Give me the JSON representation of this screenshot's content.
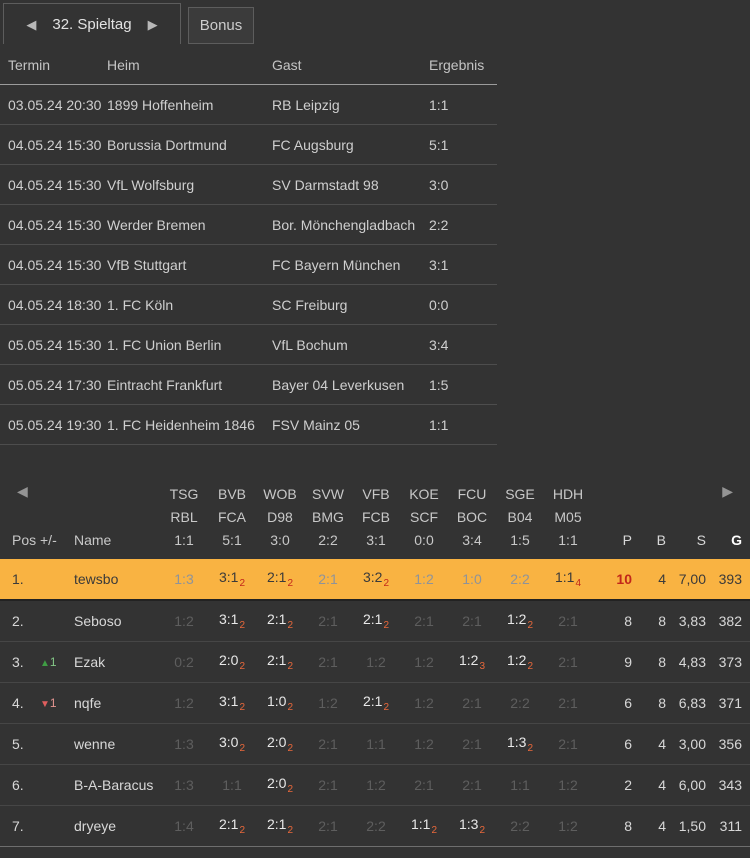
{
  "colors": {
    "background": "#333333",
    "highlight_row": "#f9b342",
    "hit_subscript": "#e8683b",
    "highlight_subscript": "#c2271a",
    "trend_up": "#3f9d44",
    "trend_down": "#e05e5e"
  },
  "tabs": {
    "matchday": {
      "label": "32. Spieltag",
      "prev_icon": "◀",
      "next_icon": "▶"
    },
    "bonus": {
      "label": "Bonus"
    }
  },
  "matches": {
    "columns": [
      "Termin",
      "Heim",
      "Gast",
      "Ergebnis"
    ],
    "rows": [
      {
        "termin": "03.05.24 20:30",
        "heim": "1899 Hoffenheim",
        "gast": "RB Leipzig",
        "ergebnis": "1:1"
      },
      {
        "termin": "04.05.24 15:30",
        "heim": "Borussia Dortmund",
        "gast": "FC Augsburg",
        "ergebnis": "5:1"
      },
      {
        "termin": "04.05.24 15:30",
        "heim": "VfL Wolfsburg",
        "gast": "SV Darmstadt 98",
        "ergebnis": "3:0"
      },
      {
        "termin": "04.05.24 15:30",
        "heim": "Werder Bremen",
        "gast": "Bor. Mönchengladbach",
        "ergebnis": "2:2"
      },
      {
        "termin": "04.05.24 15:30",
        "heim": "VfB Stuttgart",
        "gast": "FC Bayern München",
        "ergebnis": "3:1"
      },
      {
        "termin": "04.05.24 18:30",
        "heim": "1. FC Köln",
        "gast": "SC Freiburg",
        "ergebnis": "0:0"
      },
      {
        "termin": "05.05.24 15:30",
        "heim": "1. FC Union Berlin",
        "gast": "VfL Bochum",
        "ergebnis": "3:4"
      },
      {
        "termin": "05.05.24 17:30",
        "heim": "Eintracht Frankfurt",
        "gast": "Bayer 04 Leverkusen",
        "ergebnis": "1:5"
      },
      {
        "termin": "05.05.24 19:30",
        "heim": "1. FC Heidenheim 1846",
        "gast": "FSV Mainz 05",
        "ergebnis": "1:1"
      }
    ]
  },
  "leaderboard": {
    "icons": {
      "prev": "◀",
      "next": "▶",
      "up": "▲",
      "down": "▼"
    },
    "pos_label": "Pos",
    "trend_label": "+/-",
    "name_label": "Name",
    "stat_labels": {
      "p": "P",
      "b": "B",
      "s": "S",
      "g": "G"
    },
    "match_columns": [
      {
        "home": "TSG",
        "away": "RBL",
        "result": "1:1"
      },
      {
        "home": "BVB",
        "away": "FCA",
        "result": "5:1"
      },
      {
        "home": "WOB",
        "away": "D98",
        "result": "3:0"
      },
      {
        "home": "SVW",
        "away": "BMG",
        "result": "2:2"
      },
      {
        "home": "VFB",
        "away": "FCB",
        "result": "3:1"
      },
      {
        "home": "KOE",
        "away": "SCF",
        "result": "0:0"
      },
      {
        "home": "FCU",
        "away": "BOC",
        "result": "3:4"
      },
      {
        "home": "SGE",
        "away": "B04",
        "result": "1:5"
      },
      {
        "home": "HDH",
        "away": "M05",
        "result": "1:1"
      }
    ],
    "rows": [
      {
        "pos": "1.",
        "trend": null,
        "name": "tewsbo",
        "highlighted": true,
        "p_highlight": true,
        "predictions": [
          {
            "score": "1:3",
            "points": null
          },
          {
            "score": "3:1",
            "points": "2"
          },
          {
            "score": "2:1",
            "points": "2"
          },
          {
            "score": "2:1",
            "points": null
          },
          {
            "score": "3:2",
            "points": "2"
          },
          {
            "score": "1:2",
            "points": null
          },
          {
            "score": "1:0",
            "points": null
          },
          {
            "score": "2:2",
            "points": null
          },
          {
            "score": "1:1",
            "points": "4"
          }
        ],
        "p": "10",
        "b": "4",
        "s": "7,00",
        "g": "393"
      },
      {
        "pos": "2.",
        "trend": null,
        "name": "Seboso",
        "highlighted": false,
        "p_highlight": false,
        "predictions": [
          {
            "score": "1:2",
            "points": null
          },
          {
            "score": "3:1",
            "points": "2"
          },
          {
            "score": "2:1",
            "points": "2"
          },
          {
            "score": "2:1",
            "points": null
          },
          {
            "score": "2:1",
            "points": "2"
          },
          {
            "score": "2:1",
            "points": null
          },
          {
            "score": "2:1",
            "points": null
          },
          {
            "score": "1:2",
            "points": "2"
          },
          {
            "score": "2:1",
            "points": null
          }
        ],
        "p": "8",
        "b": "8",
        "s": "3,83",
        "g": "382"
      },
      {
        "pos": "3.",
        "trend": {
          "dir": "up",
          "value": "1"
        },
        "name": "Ezak",
        "highlighted": false,
        "p_highlight": false,
        "predictions": [
          {
            "score": "0:2",
            "points": null
          },
          {
            "score": "2:0",
            "points": "2"
          },
          {
            "score": "2:1",
            "points": "2"
          },
          {
            "score": "2:1",
            "points": null
          },
          {
            "score": "1:2",
            "points": null
          },
          {
            "score": "1:2",
            "points": null
          },
          {
            "score": "1:2",
            "points": "3"
          },
          {
            "score": "1:2",
            "points": "2"
          },
          {
            "score": "2:1",
            "points": null
          }
        ],
        "p": "9",
        "b": "8",
        "s": "4,83",
        "g": "373"
      },
      {
        "pos": "4.",
        "trend": {
          "dir": "down",
          "value": "1"
        },
        "name": "nqfe",
        "highlighted": false,
        "p_highlight": false,
        "predictions": [
          {
            "score": "1:2",
            "points": null
          },
          {
            "score": "3:1",
            "points": "2"
          },
          {
            "score": "1:0",
            "points": "2"
          },
          {
            "score": "1:2",
            "points": null
          },
          {
            "score": "2:1",
            "points": "2"
          },
          {
            "score": "1:2",
            "points": null
          },
          {
            "score": "2:1",
            "points": null
          },
          {
            "score": "2:2",
            "points": null
          },
          {
            "score": "2:1",
            "points": null
          }
        ],
        "p": "6",
        "b": "8",
        "s": "6,83",
        "g": "371"
      },
      {
        "pos": "5.",
        "trend": null,
        "name": "wenne",
        "highlighted": false,
        "p_highlight": false,
        "predictions": [
          {
            "score": "1:3",
            "points": null
          },
          {
            "score": "3:0",
            "points": "2"
          },
          {
            "score": "2:0",
            "points": "2"
          },
          {
            "score": "2:1",
            "points": null
          },
          {
            "score": "1:1",
            "points": null
          },
          {
            "score": "1:2",
            "points": null
          },
          {
            "score": "2:1",
            "points": null
          },
          {
            "score": "1:3",
            "points": "2"
          },
          {
            "score": "2:1",
            "points": null
          }
        ],
        "p": "6",
        "b": "4",
        "s": "3,00",
        "g": "356"
      },
      {
        "pos": "6.",
        "trend": null,
        "name": "B-A-Baracus",
        "highlighted": false,
        "p_highlight": false,
        "predictions": [
          {
            "score": "1:3",
            "points": null
          },
          {
            "score": "1:1",
            "points": null
          },
          {
            "score": "2:0",
            "points": "2"
          },
          {
            "score": "2:1",
            "points": null
          },
          {
            "score": "1:2",
            "points": null
          },
          {
            "score": "2:1",
            "points": null
          },
          {
            "score": "2:1",
            "points": null
          },
          {
            "score": "1:1",
            "points": null
          },
          {
            "score": "1:2",
            "points": null
          }
        ],
        "p": "2",
        "b": "4",
        "s": "6,00",
        "g": "343"
      },
      {
        "pos": "7.",
        "trend": null,
        "name": "dryeye",
        "highlighted": false,
        "p_highlight": false,
        "predictions": [
          {
            "score": "1:4",
            "points": null
          },
          {
            "score": "2:1",
            "points": "2"
          },
          {
            "score": "2:1",
            "points": "2"
          },
          {
            "score": "2:1",
            "points": null
          },
          {
            "score": "2:2",
            "points": null
          },
          {
            "score": "1:1",
            "points": "2"
          },
          {
            "score": "1:3",
            "points": "2"
          },
          {
            "score": "2:2",
            "points": null
          },
          {
            "score": "1:2",
            "points": null
          }
        ],
        "p": "8",
        "b": "4",
        "s": "1,50",
        "g": "311"
      }
    ]
  }
}
